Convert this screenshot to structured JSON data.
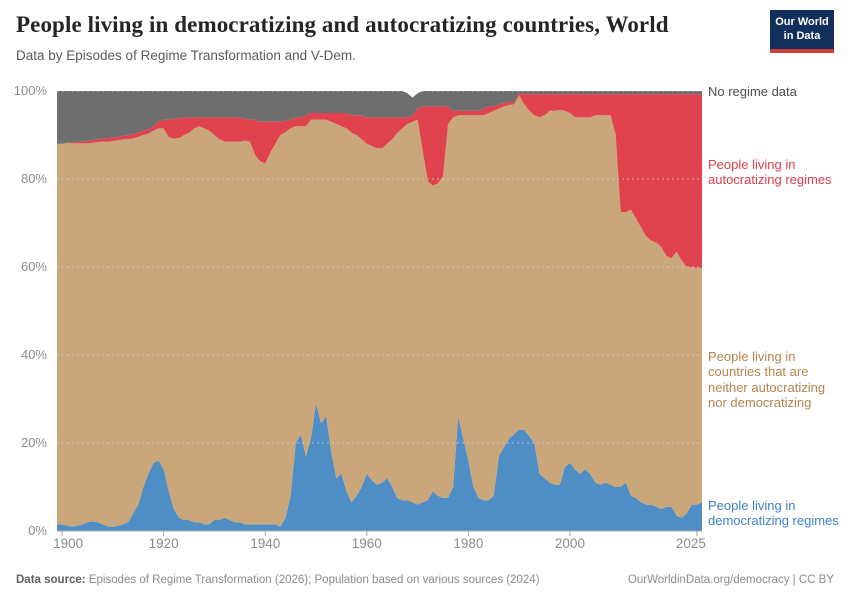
{
  "header": {
    "title": "People living in democratizing and autocratizing countries, World",
    "subtitle": "Data by Episodes of Regime Transformation and V-Dem.",
    "logo_line1": "Our World",
    "logo_line2": "in Data"
  },
  "chart_data": {
    "type": "area",
    "stacked": true,
    "unit": "%",
    "x_range": [
      1899,
      2026
    ],
    "x_step": 1,
    "ylim": [
      0,
      100
    ],
    "grid": true,
    "legend_position": "right",
    "y_ticks": [
      {
        "value": 0,
        "label": "0%"
      },
      {
        "value": 20,
        "label": "20%"
      },
      {
        "value": 40,
        "label": "40%"
      },
      {
        "value": 60,
        "label": "60%"
      },
      {
        "value": 80,
        "label": "80%"
      },
      {
        "value": 100,
        "label": "100%"
      }
    ],
    "x_ticks": [
      {
        "year": 1900,
        "label": "1900"
      },
      {
        "year": 1920,
        "label": "1920"
      },
      {
        "year": 1940,
        "label": "1940"
      },
      {
        "year": 1960,
        "label": "1960"
      },
      {
        "year": 1980,
        "label": "1980"
      },
      {
        "year": 2000,
        "label": "2000"
      },
      {
        "year": 2025,
        "label": "2025"
      }
    ],
    "series": [
      {
        "name": "People living in democratizing regimes",
        "color": "#4f8ec4",
        "values": [
          1.5,
          1.5,
          1.2,
          1.0,
          1.2,
          1.5,
          2.0,
          2.2,
          2.0,
          1.5,
          1.0,
          1.0,
          1.2,
          1.5,
          2.0,
          4.0,
          6.0,
          10.0,
          13.0,
          15.5,
          16.0,
          14.0,
          9.0,
          5.0,
          3.0,
          2.5,
          2.5,
          2.0,
          2.0,
          1.5,
          1.5,
          2.5,
          2.5,
          3.0,
          2.5,
          2.0,
          2.0,
          1.5,
          1.5,
          1.5,
          1.5,
          1.5,
          1.5,
          1.5,
          1.0,
          3.0,
          8.0,
          20.0,
          22.0,
          17.0,
          21.0,
          29.0,
          24.5,
          26.0,
          18.0,
          12.0,
          13.0,
          9.0,
          6.5,
          8.0,
          10.0,
          13.0,
          11.5,
          10.5,
          11.0,
          12.0,
          10.0,
          7.5,
          7.0,
          7.0,
          6.5,
          6.0,
          6.5,
          7.0,
          9.0,
          8.0,
          7.5,
          7.5,
          10.0,
          26.0,
          21.0,
          16.0,
          10.0,
          7.5,
          7.0,
          7.0,
          8.0,
          17.0,
          19.0,
          21.0,
          22.0,
          23.0,
          23.0,
          21.5,
          20.0,
          13.0,
          12.0,
          11.0,
          10.5,
          10.5,
          14.5,
          15.5,
          14.0,
          13.0,
          14.0,
          13.0,
          11.0,
          10.5,
          11.0,
          10.5,
          10.0,
          10.0,
          11.0,
          8.0,
          7.5,
          6.5,
          6.0,
          6.0,
          5.5,
          5.0,
          5.5,
          5.5,
          3.5,
          3.0,
          4.0,
          6.0,
          6.0,
          6.5
        ]
      },
      {
        "name": "People living in countries that are neither autocratizing nor democratizing",
        "color": "#c9a77a",
        "values": [
          86.5,
          86.5,
          87.0,
          87.1,
          86.9,
          86.6,
          86.1,
          86.0,
          86.4,
          87.0,
          87.5,
          87.6,
          87.6,
          87.5,
          87.1,
          85.2,
          83.6,
          80.0,
          77.3,
          75.5,
          75.5,
          77.5,
          80.5,
          84.2,
          86.3,
          87.5,
          88.0,
          89.5,
          90.0,
          90.0,
          89.5,
          87.5,
          86.5,
          85.5,
          86.0,
          86.5,
          86.5,
          87.2,
          87.0,
          84.0,
          82.5,
          82.0,
          84.5,
          86.5,
          89.0,
          87.7,
          83.5,
          72.0,
          70.0,
          75.0,
          72.5,
          64.5,
          69.0,
          67.5,
          75.0,
          80.5,
          79.0,
          82.5,
          84.0,
          82.0,
          79.0,
          75.0,
          76.0,
          76.5,
          76.0,
          76.0,
          79.0,
          83.0,
          84.5,
          85.5,
          86.5,
          87.5,
          80.0,
          72.5,
          69.5,
          71.0,
          73.0,
          85.0,
          84.0,
          68.5,
          73.5,
          78.5,
          84.5,
          87.0,
          87.5,
          88.0,
          87.5,
          79.0,
          77.5,
          75.8,
          75.0,
          76.0,
          74.0,
          74.0,
          74.5,
          81.0,
          82.5,
          84.5,
          85.0,
          85.2,
          81.0,
          79.5,
          80.0,
          81.0,
          80.0,
          81.0,
          83.5,
          84.0,
          83.5,
          84.0,
          80.0,
          62.5,
          61.5,
          65.0,
          63.5,
          62.5,
          61.0,
          60.0,
          60.0,
          59.5,
          57.0,
          56.5,
          60.0,
          58.5,
          56.0,
          54.0,
          53.8,
          53.3
        ]
      },
      {
        "name": "People living in autocratizing regimes",
        "color": "#e0424e",
        "values": [
          0,
          0,
          0,
          0.2,
          0.3,
          0.4,
          0.5,
          0.6,
          0.6,
          0.7,
          0.8,
          0.8,
          0.8,
          0.8,
          0.9,
          1.0,
          1.0,
          1.0,
          1.0,
          1.0,
          1.5,
          2.0,
          4.0,
          4.5,
          4.5,
          4.0,
          3.5,
          2.5,
          2.0,
          2.5,
          3.0,
          4.0,
          5.0,
          5.5,
          5.5,
          5.5,
          5.5,
          5.0,
          5.0,
          8.0,
          9.0,
          9.5,
          7.0,
          5.0,
          3.0,
          2.5,
          2.0,
          2.0,
          2.0,
          2.5,
          1.5,
          1.5,
          1.5,
          1.5,
          2.0,
          2.5,
          3.0,
          3.5,
          4.0,
          4.5,
          5.5,
          6.0,
          6.5,
          7.0,
          7.0,
          6.0,
          5.0,
          3.5,
          2.5,
          1.5,
          1.5,
          2.5,
          10.0,
          17.0,
          18.0,
          17.5,
          16.0,
          4.0,
          1.5,
          1.0,
          1.0,
          1.0,
          1.0,
          1.0,
          1.5,
          1.5,
          1.0,
          1.0,
          0.8,
          0.7,
          0.5,
          0.5,
          2.3,
          3.8,
          4.8,
          5.3,
          4.8,
          3.8,
          3.8,
          3.6,
          3.8,
          4.3,
          5.3,
          5.3,
          5.3,
          5.3,
          4.8,
          4.8,
          4.8,
          4.8,
          9.3,
          26.8,
          26.8,
          26.3,
          28.3,
          30.3,
          32.3,
          33.3,
          33.8,
          34.8,
          36.8,
          37.3,
          35.8,
          37.8,
          39.3,
          39.3,
          39.5,
          39.5
        ]
      },
      {
        "name": "No regime data",
        "color": "#6e6e6e",
        "values": [
          12,
          12,
          11.8,
          11.7,
          11.6,
          11.5,
          11.4,
          11.2,
          11.0,
          10.8,
          10.7,
          10.6,
          10.4,
          10.2,
          10.0,
          9.8,
          9.4,
          9.0,
          8.7,
          8.0,
          7.0,
          6.5,
          6.5,
          6.3,
          6.2,
          6.0,
          6.0,
          6.0,
          6.0,
          6.0,
          6.0,
          6.0,
          6.0,
          6.0,
          6.0,
          6.0,
          6.0,
          6.3,
          6.5,
          6.5,
          7.0,
          7.0,
          7.0,
          7.0,
          7.0,
          6.8,
          6.5,
          6.0,
          6.0,
          5.5,
          5.0,
          5.0,
          5.0,
          5.0,
          5.0,
          5.0,
          5.0,
          5.0,
          5.5,
          5.5,
          5.5,
          6.0,
          6.0,
          6.0,
          6.0,
          6.0,
          6.0,
          6.0,
          6.0,
          5.5,
          4.0,
          3.5,
          3.5,
          3.5,
          3.5,
          3.5,
          3.5,
          3.5,
          4.5,
          4.5,
          4.5,
          4.5,
          4.5,
          4.5,
          4.0,
          3.5,
          3.5,
          3.0,
          2.7,
          2.5,
          2.5,
          0.5,
          0.7,
          0.7,
          0.7,
          0.7,
          0.7,
          0.7,
          0.7,
          0.7,
          0.7,
          0.7,
          0.7,
          0.7,
          0.7,
          0.7,
          0.7,
          0.7,
          0.7,
          0.7,
          0.7,
          0.7,
          0.7,
          0.7,
          0.7,
          0.7,
          0.7,
          0.7,
          0.7,
          0.7,
          0.7,
          0.7,
          0.7,
          0.7,
          0.7,
          0.7,
          0.7,
          0.7
        ]
      }
    ]
  },
  "footer": {
    "source_prefix": "Data source:",
    "source_text": " Episodes of Regime Transformation (2026); Population based on various sources (2024)",
    "link": "OurWorldinData.org/democracy",
    "separator": " | ",
    "license": "CC BY"
  }
}
